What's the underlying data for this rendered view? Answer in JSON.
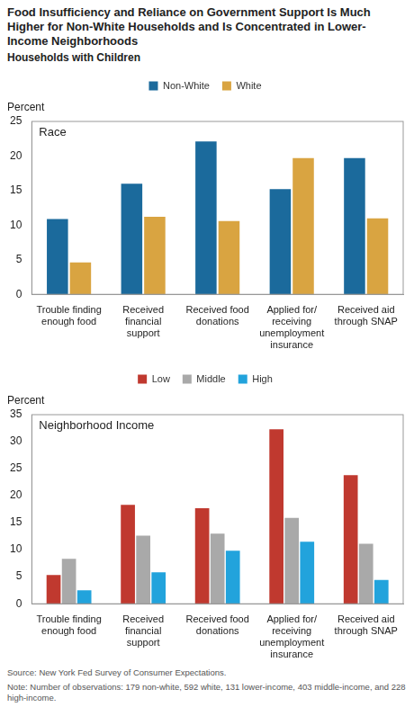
{
  "title": "Food Insufficiency and Reliance on Government Support Is Much Higher for Non-White Households and Is Concentrated in Lower-Income Neighborhoods",
  "subtitle": "Households with Children",
  "source": "Source: New York Fed Survey of Consumer Expectations.",
  "note": "Note: Number of observations: 179 non-white, 592 white, 131 lower-income, 403 middle-income, and 228 high-income.",
  "chart_data": [
    {
      "type": "bar",
      "title": "Race",
      "ylabel": "Percent",
      "categories": [
        "Trouble finding enough food",
        "Received financial support",
        "Received food donations",
        "Applied for/ receiving unemployment insurance",
        "Received aid through SNAP"
      ],
      "series": [
        {
          "name": "Non-White",
          "color": "#1b6a9c",
          "values": [
            10.9,
            16.0,
            22.1,
            15.2,
            19.7
          ]
        },
        {
          "name": "White",
          "color": "#d9a441",
          "values": [
            4.6,
            11.2,
            10.6,
            19.7,
            11.0
          ]
        }
      ],
      "ylim": [
        0,
        25
      ],
      "yticks": [
        0,
        5,
        10,
        15,
        20,
        25
      ],
      "grid": false,
      "legend": "top"
    },
    {
      "type": "bar",
      "title": "Neighborhood Income",
      "ylabel": "Percent",
      "categories": [
        "Trouble finding enough food",
        "Received financial support",
        "Received food donations",
        "Applied for/ receiving unemployment insurance",
        "Received aid through SNAP"
      ],
      "series": [
        {
          "name": "Low",
          "color": "#c0392f",
          "values": [
            5.3,
            18.3,
            17.7,
            32.3,
            23.8
          ]
        },
        {
          "name": "Middle",
          "color": "#a9a9a9",
          "values": [
            8.3,
            12.6,
            13.0,
            15.9,
            11.1
          ]
        },
        {
          "name": "High",
          "color": "#22a3dc",
          "values": [
            2.5,
            5.8,
            9.8,
            11.5,
            4.4
          ]
        }
      ],
      "ylim": [
        0,
        35
      ],
      "yticks": [
        0,
        5,
        10,
        15,
        20,
        25,
        30,
        35
      ],
      "grid": false,
      "legend": "top"
    }
  ]
}
